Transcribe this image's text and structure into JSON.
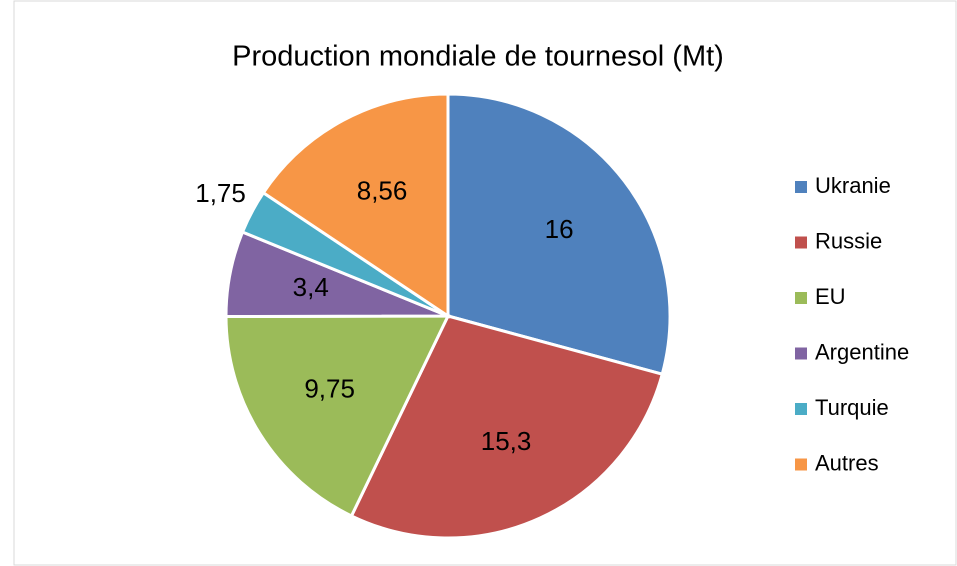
{
  "chart_data": {
    "type": "pie",
    "title": "Production mondiale de tournesol (Mt)",
    "categories": [
      "Ukranie",
      "Russie",
      "EU",
      "Argentine",
      "Turquie",
      "Autres"
    ],
    "values": [
      16,
      15.3,
      9.75,
      3.4,
      1.75,
      8.56
    ],
    "value_labels": [
      "16",
      "15,3",
      "9,75",
      "3,4",
      "1,75",
      "8,56"
    ],
    "colors": [
      "#4f81bd",
      "#c0504d",
      "#9bbb59",
      "#8064a2",
      "#4bacc6",
      "#f79646"
    ],
    "legend": "right"
  }
}
